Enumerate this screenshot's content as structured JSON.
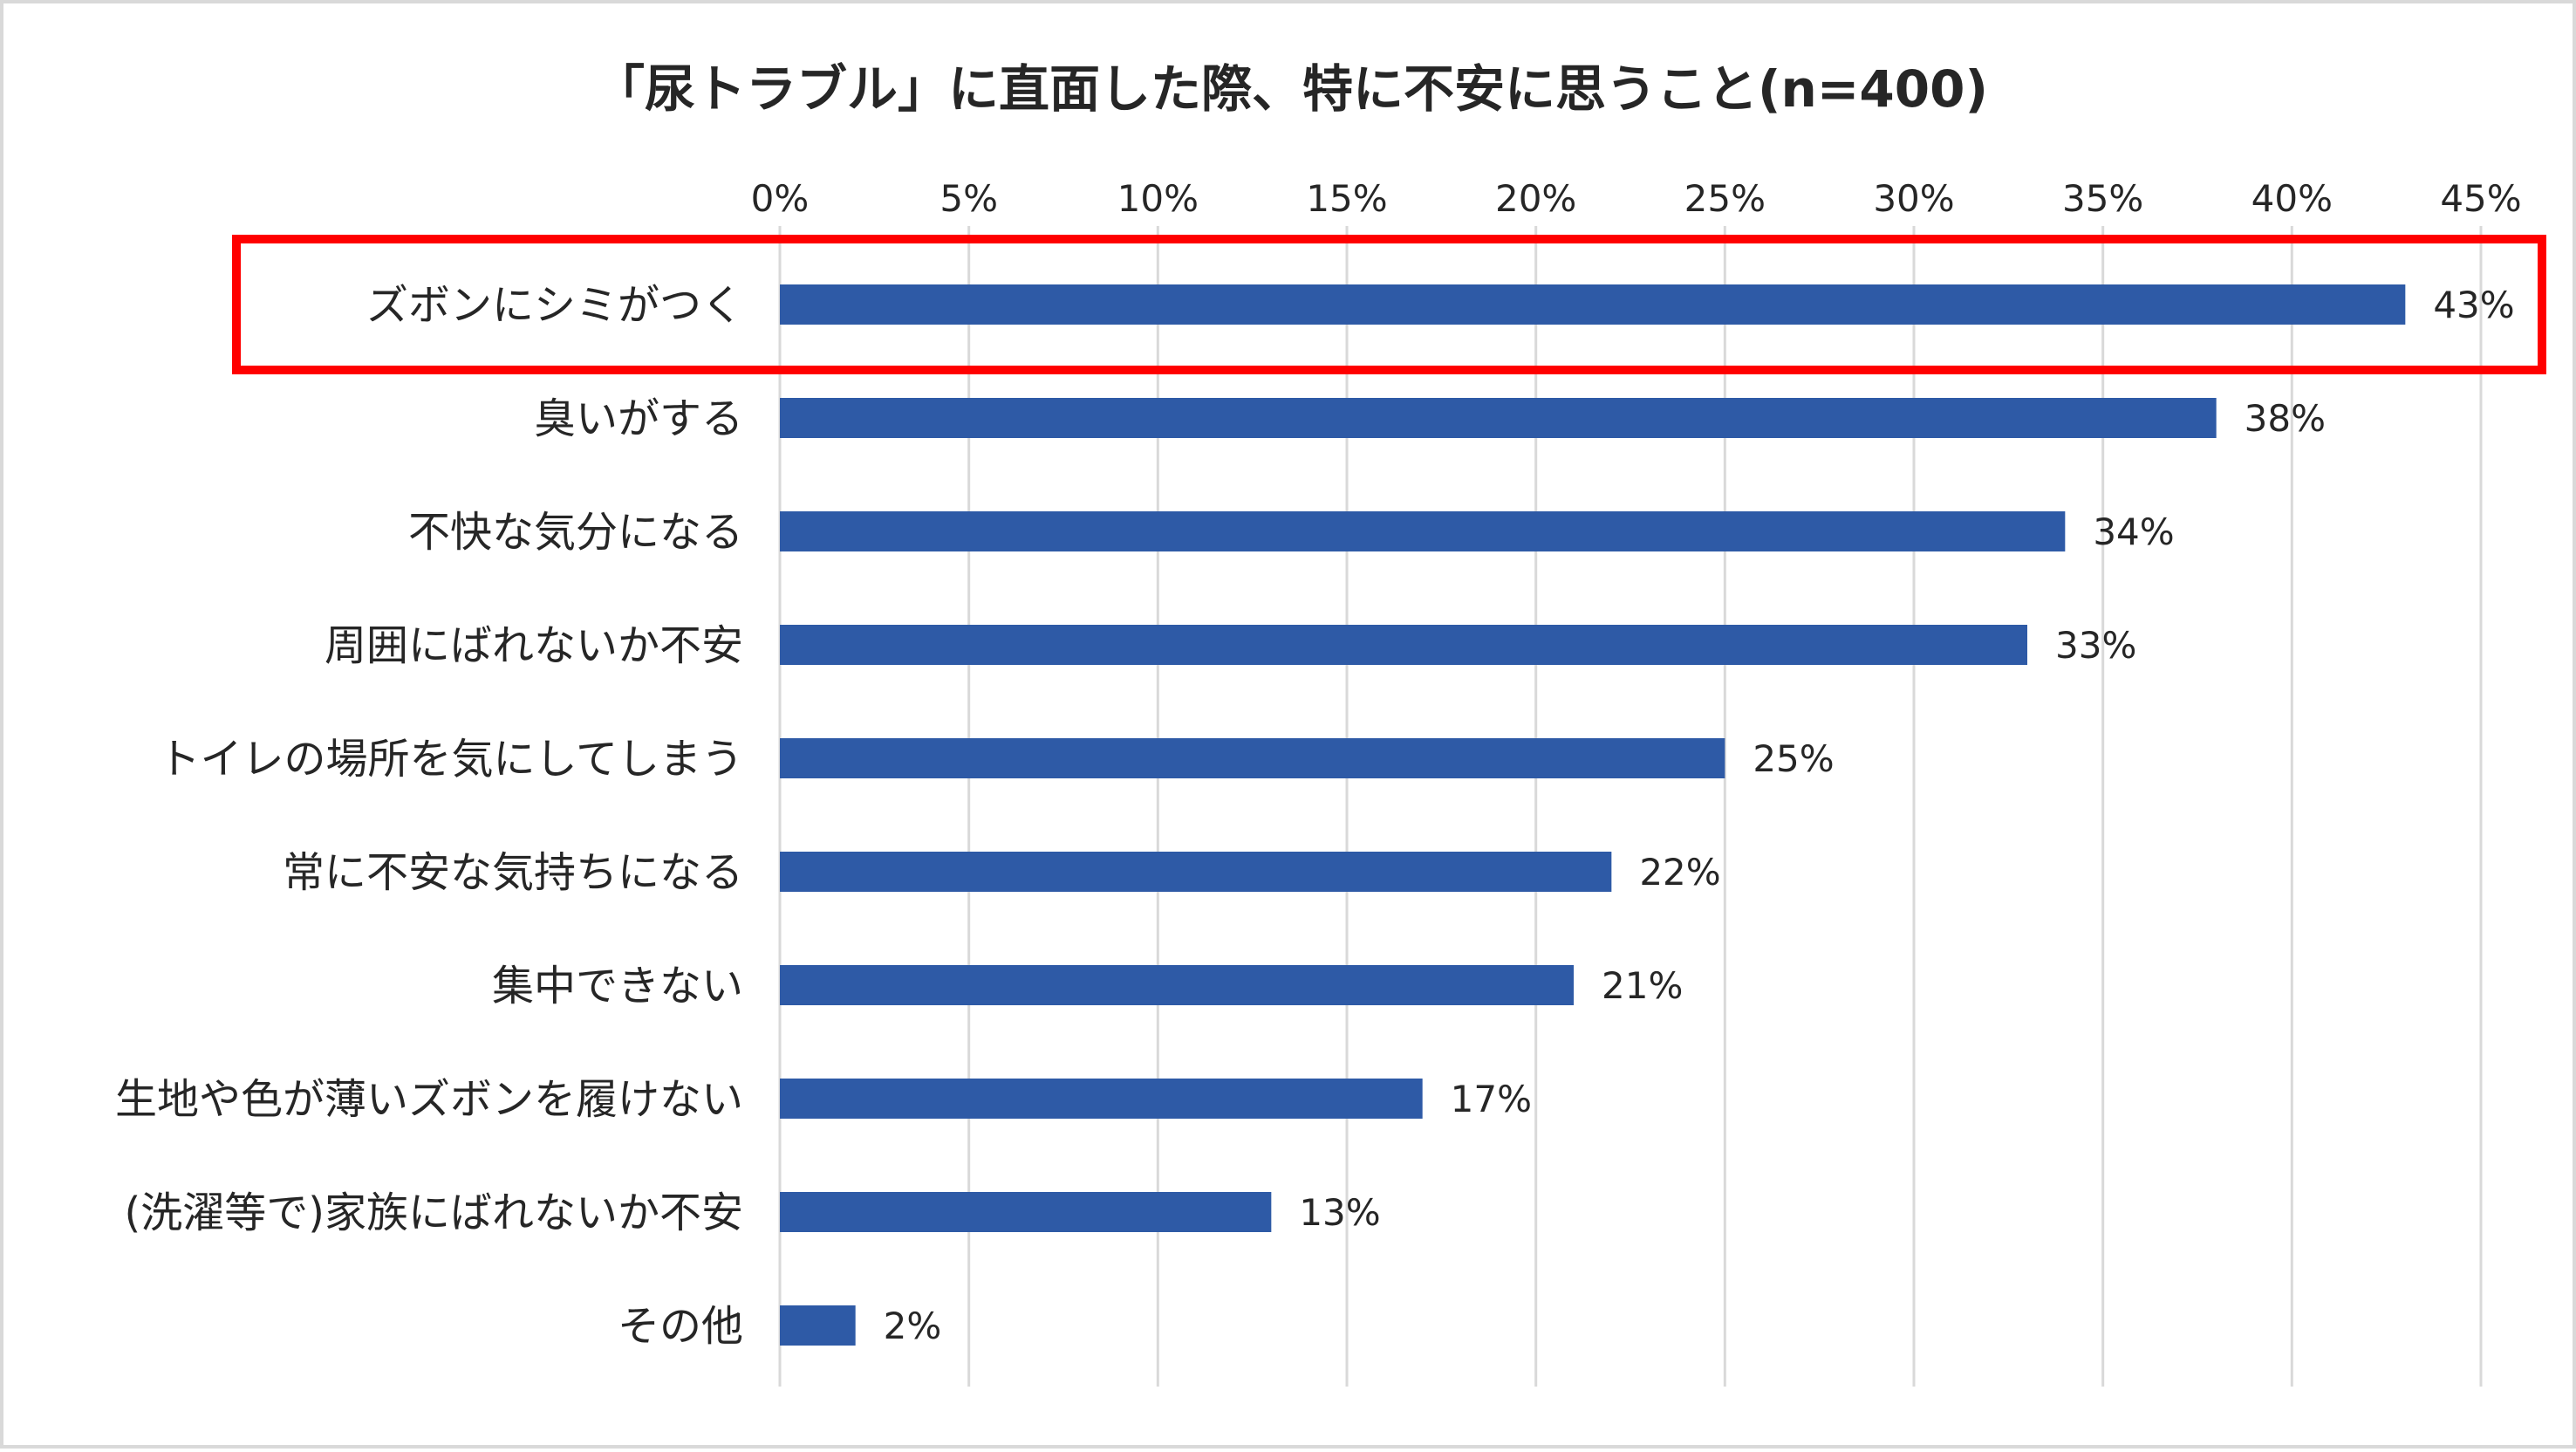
{
  "chart_data": {
    "type": "bar",
    "orientation": "horizontal",
    "title": "「尿トラブル」に直面した際、特に不安に思うこと(n=400)",
    "categories": [
      "ズボンにシミがつく",
      "臭いがする",
      "不快な気分になる",
      "周囲にばれないか不安",
      "トイレの場所を気にしてしまう",
      "常に不安な気持ちになる",
      "集中できない",
      "生地や色が薄いズボンを履けない",
      "(洗濯等で)家族にばれないか不安",
      "その他"
    ],
    "values": [
      43,
      38,
      34,
      33,
      25,
      22,
      21,
      17,
      13,
      2
    ],
    "data_labels": [
      "43%",
      "38%",
      "34%",
      "33%",
      "25%",
      "22%",
      "21%",
      "17%",
      "13%",
      "2%"
    ],
    "xlim": [
      0,
      45
    ],
    "xticks": [
      0,
      5,
      10,
      15,
      20,
      25,
      30,
      35,
      40,
      45
    ],
    "tick_labels": [
      "0%",
      "5%",
      "10%",
      "15%",
      "20%",
      "25%",
      "30%",
      "35%",
      "40%",
      "45%"
    ],
    "axis_position": "top",
    "grid": true,
    "highlighted_category": "ズボンにシミがつく"
  },
  "colors": {
    "bar": "#2e5aa6",
    "grid": "#d9d9d9",
    "highlight": "#ff0000",
    "text": "#262626",
    "border": "#d9d9d9"
  }
}
